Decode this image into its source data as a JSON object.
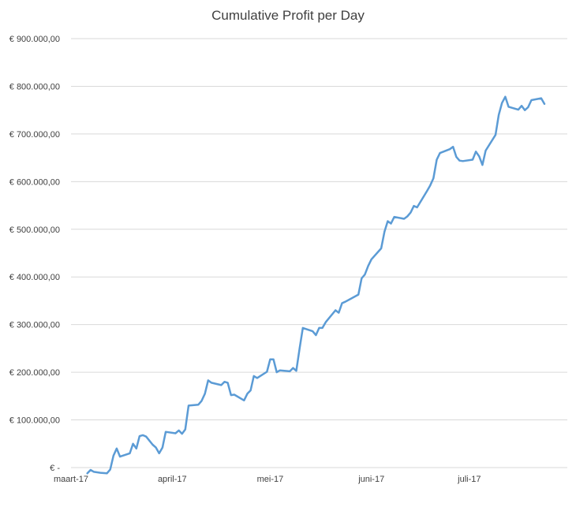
{
  "chart_data": {
    "type": "line",
    "title": "Cumulative Profit per Day",
    "xlabel": "",
    "ylabel": "",
    "ylim": [
      0,
      900000
    ],
    "grid": true,
    "legend": "none",
    "y_tick_values": [
      0,
      100000,
      200000,
      300000,
      400000,
      500000,
      600000,
      700000,
      800000,
      900000
    ],
    "y_tick_labels": [
      "€ -",
      "€ 100.000,00",
      "€ 200.000,00",
      "€ 300.000,00",
      "€ 400.000,00",
      "€ 500.000,00",
      "€ 600.000,00",
      "€ 700.000,00",
      "€ 800.000,00",
      "€ 900.000,00"
    ],
    "x_range": [
      "2017-03-01",
      "2017-07-31"
    ],
    "x_tick_values": [
      "2017-03-01",
      "2017-04-01",
      "2017-05-01",
      "2017-06-01",
      "2017-07-01"
    ],
    "x_tick_labels": [
      "maart-17",
      "april-17",
      "mei-17",
      "juni-17",
      "juli-17"
    ],
    "series_color": "#5B9BD5",
    "gridline_color": "#D9D9D9",
    "series": [
      {
        "points": [
          [
            "2017-03-06",
            -12000
          ],
          [
            "2017-03-07",
            -5000
          ],
          [
            "2017-03-08",
            -9000
          ],
          [
            "2017-03-10",
            -11000
          ],
          [
            "2017-03-12",
            -12000
          ],
          [
            "2017-03-13",
            -4000
          ],
          [
            "2017-03-14",
            25000
          ],
          [
            "2017-03-15",
            40000
          ],
          [
            "2017-03-16",
            23000
          ],
          [
            "2017-03-19",
            30000
          ],
          [
            "2017-03-20",
            50000
          ],
          [
            "2017-03-21",
            40000
          ],
          [
            "2017-03-22",
            66000
          ],
          [
            "2017-03-23",
            68000
          ],
          [
            "2017-03-24",
            65000
          ],
          [
            "2017-03-26",
            48000
          ],
          [
            "2017-03-27",
            42000
          ],
          [
            "2017-03-28",
            30000
          ],
          [
            "2017-03-29",
            42000
          ],
          [
            "2017-03-30",
            75000
          ],
          [
            "2017-04-02",
            72000
          ],
          [
            "2017-04-03",
            78000
          ],
          [
            "2017-04-04",
            71000
          ],
          [
            "2017-04-05",
            80000
          ],
          [
            "2017-04-06",
            130000
          ],
          [
            "2017-04-09",
            132000
          ],
          [
            "2017-04-10",
            140000
          ],
          [
            "2017-04-11",
            155000
          ],
          [
            "2017-04-12",
            183000
          ],
          [
            "2017-04-13",
            178000
          ],
          [
            "2017-04-16",
            173000
          ],
          [
            "2017-04-17",
            180000
          ],
          [
            "2017-04-18",
            178000
          ],
          [
            "2017-04-19",
            152000
          ],
          [
            "2017-04-20",
            153000
          ],
          [
            "2017-04-23",
            141000
          ],
          [
            "2017-04-24",
            155000
          ],
          [
            "2017-04-25",
            162000
          ],
          [
            "2017-04-26",
            192000
          ],
          [
            "2017-04-27",
            188000
          ],
          [
            "2017-04-30",
            201000
          ],
          [
            "2017-05-01",
            227000
          ],
          [
            "2017-05-02",
            227000
          ],
          [
            "2017-05-03",
            200000
          ],
          [
            "2017-05-04",
            204000
          ],
          [
            "2017-05-07",
            202000
          ],
          [
            "2017-05-08",
            209000
          ],
          [
            "2017-05-09",
            203000
          ],
          [
            "2017-05-10",
            250000
          ],
          [
            "2017-05-11",
            293000
          ],
          [
            "2017-05-14",
            286000
          ],
          [
            "2017-05-15",
            278000
          ],
          [
            "2017-05-16",
            293000
          ],
          [
            "2017-05-17",
            293000
          ],
          [
            "2017-05-18",
            305000
          ],
          [
            "2017-05-21",
            330000
          ],
          [
            "2017-05-22",
            325000
          ],
          [
            "2017-05-23",
            345000
          ],
          [
            "2017-05-24",
            348000
          ],
          [
            "2017-05-28",
            363000
          ],
          [
            "2017-05-29",
            397000
          ],
          [
            "2017-05-30",
            405000
          ],
          [
            "2017-05-31",
            423000
          ],
          [
            "2017-06-01",
            437000
          ],
          [
            "2017-06-04",
            460000
          ],
          [
            "2017-06-05",
            495000
          ],
          [
            "2017-06-06",
            517000
          ],
          [
            "2017-06-07",
            512000
          ],
          [
            "2017-06-08",
            526000
          ],
          [
            "2017-06-11",
            522000
          ],
          [
            "2017-06-12",
            527000
          ],
          [
            "2017-06-13",
            535000
          ],
          [
            "2017-06-14",
            549000
          ],
          [
            "2017-06-15",
            546000
          ],
          [
            "2017-06-18",
            580000
          ],
          [
            "2017-06-19",
            592000
          ],
          [
            "2017-06-20",
            607000
          ],
          [
            "2017-06-21",
            646000
          ],
          [
            "2017-06-22",
            660000
          ],
          [
            "2017-06-25",
            668000
          ],
          [
            "2017-06-26",
            673000
          ],
          [
            "2017-06-27",
            652000
          ],
          [
            "2017-06-28",
            644000
          ],
          [
            "2017-06-29",
            643000
          ],
          [
            "2017-07-02",
            646000
          ],
          [
            "2017-07-03",
            663000
          ],
          [
            "2017-07-04",
            653000
          ],
          [
            "2017-07-05",
            635000
          ],
          [
            "2017-07-06",
            665000
          ],
          [
            "2017-07-09",
            698000
          ],
          [
            "2017-07-10",
            740000
          ],
          [
            "2017-07-11",
            765000
          ],
          [
            "2017-07-12",
            778000
          ],
          [
            "2017-07-13",
            757000
          ],
          [
            "2017-07-16",
            751000
          ],
          [
            "2017-07-17",
            759000
          ],
          [
            "2017-07-18",
            750000
          ],
          [
            "2017-07-19",
            756000
          ],
          [
            "2017-07-20",
            771000
          ],
          [
            "2017-07-23",
            775000
          ],
          [
            "2017-07-24",
            763000
          ]
        ]
      }
    ]
  }
}
